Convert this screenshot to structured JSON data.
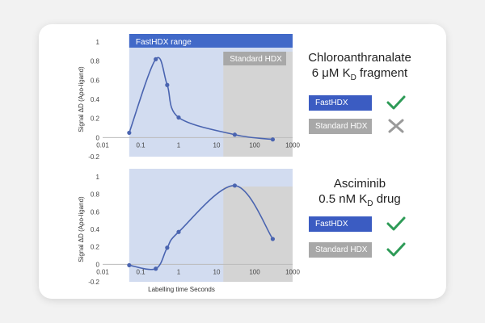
{
  "chart_data": [
    {
      "type": "line",
      "ylabel": "Signal ΔD (Apo-ligand)",
      "xlabel": "",
      "x_scale": "log",
      "xlim": [
        0.01,
        1000
      ],
      "ylim": [
        -0.2,
        1
      ],
      "x_ticks": [
        "0.01",
        "0.1",
        "1",
        "10",
        "100",
        "1000"
      ],
      "y_ticks": [
        "-0.2",
        "0",
        "0.2",
        "0.4",
        "0.6",
        "0.8",
        "1"
      ],
      "bands": [
        {
          "label": "FastHDX range",
          "from": 0.05,
          "to": 1000,
          "color": "#d2dcf0"
        },
        {
          "label": "Standard HDX",
          "from": 15,
          "to": 1000,
          "color": "#d4d4d4"
        }
      ],
      "series": [
        {
          "x": [
            0.05,
            0.25,
            0.5,
            1,
            30,
            300
          ],
          "y": [
            0.05,
            0.82,
            0.55,
            0.21,
            0.03,
            -0.02
          ]
        }
      ],
      "title_lines": [
        "Chloroanthranalate",
        "6 μM K",
        "D",
        " fragment"
      ],
      "legend": [
        {
          "label": "FastHDX",
          "color": "#3b5cc2",
          "status": "check"
        },
        {
          "label": "Standard HDX",
          "color": "#a8a8a8",
          "status": "cross"
        }
      ]
    },
    {
      "type": "line",
      "ylabel": "Signal ΔD (Apo-ligand)",
      "xlabel": "Labelling time Seconds",
      "x_scale": "log",
      "xlim": [
        0.01,
        1000
      ],
      "ylim": [
        -0.2,
        1
      ],
      "x_ticks": [
        "0.01",
        "0.1",
        "1",
        "10",
        "100",
        "1000"
      ],
      "y_ticks": [
        "-0.2",
        "0",
        "0.2",
        "0.4",
        "0.6",
        "0.8",
        "1"
      ],
      "bands": [
        {
          "label": "",
          "from": 0.05,
          "to": 1000,
          "color": "#d2dcf0"
        },
        {
          "label": "",
          "from": 15,
          "to": 1000,
          "color": "#d4d4d4"
        }
      ],
      "series": [
        {
          "x": [
            0.05,
            0.25,
            0.5,
            1,
            30,
            300
          ],
          "y": [
            -0.01,
            -0.05,
            0.19,
            0.37,
            0.9,
            0.29
          ]
        }
      ],
      "title_lines": [
        "Asciminib",
        "0.5 nM K",
        "D",
        " drug"
      ],
      "legend": [
        {
          "label": "FastHDX",
          "color": "#3b5cc2",
          "status": "check"
        },
        {
          "label": "Standard HDX",
          "color": "#a8a8a8",
          "status": "check"
        }
      ]
    }
  ],
  "colors": {
    "line": "#4a64b0",
    "band_header": "#4169c8",
    "check": "#2e9b57",
    "cross": "#9a9a9a"
  }
}
